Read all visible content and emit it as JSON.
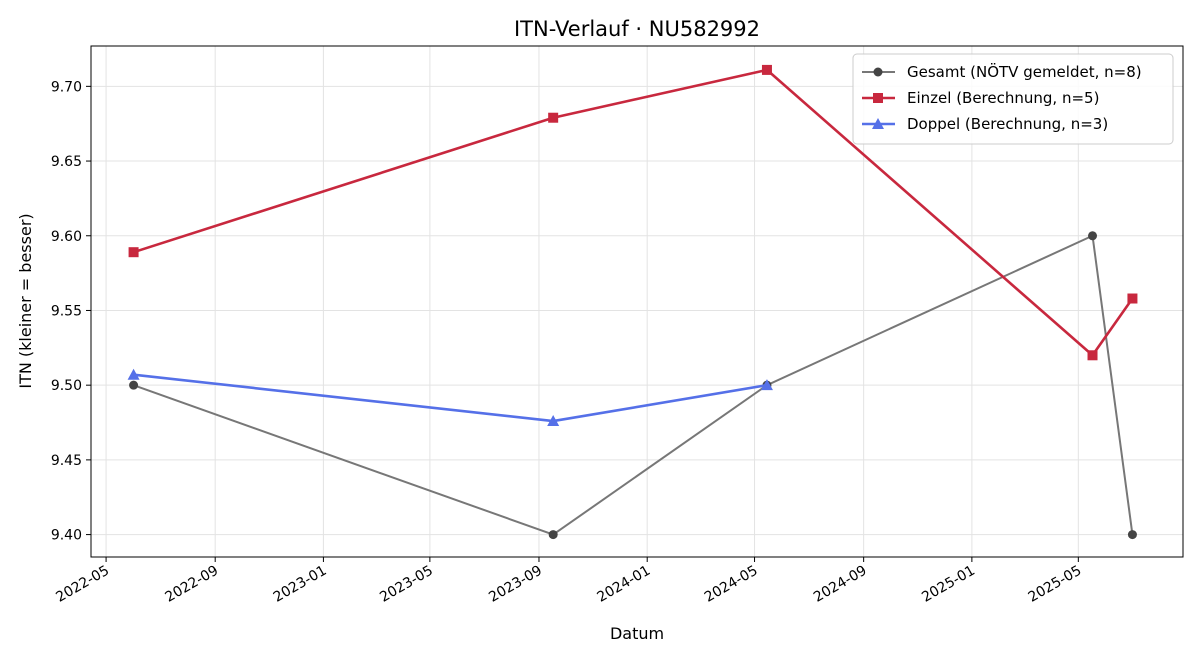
{
  "chart_data": {
    "type": "line",
    "title": "ITN-Verlauf · NU582992",
    "xlabel": "Datum",
    "ylabel": "ITN  (kleiner = besser)",
    "x_type": "date",
    "xlim": [
      "2022-04-14",
      "2025-08-27"
    ],
    "ylim": [
      9.385,
      9.727
    ],
    "x_ticks": [
      "2022-05",
      "2022-09",
      "2023-01",
      "2023-05",
      "2023-09",
      "2024-01",
      "2024-05",
      "2024-09",
      "2025-01",
      "2025-05"
    ],
    "y_ticks": [
      "9.40",
      "9.45",
      "9.50",
      "9.55",
      "9.60",
      "9.65",
      "9.70"
    ],
    "grid": true,
    "legend_position": "top-right",
    "series": [
      {
        "name": "Gesamt (NÖTV gemeldet, n=8)",
        "color": "#777777",
        "marker_color": "#444444",
        "marker": "circle",
        "x": [
          "2022-06-01",
          "2023-09-17",
          "2024-05-15",
          "2025-05-17",
          "2025-07-01"
        ],
        "y": [
          9.5,
          9.4,
          9.5,
          9.6,
          9.4
        ]
      },
      {
        "name": "Einzel (Berechnung, n=5)",
        "color": "#c8283e",
        "marker_color": "#c8283e",
        "marker": "square",
        "x": [
          "2022-06-01",
          "2023-09-17",
          "2024-05-15",
          "2025-05-17",
          "2025-07-01"
        ],
        "y": [
          9.589,
          9.679,
          9.711,
          9.52,
          9.558
        ]
      },
      {
        "name": "Doppel (Berechnung, n=3)",
        "color": "#5570e8",
        "marker_color": "#5570e8",
        "marker": "triangle",
        "x": [
          "2022-06-01",
          "2023-09-17",
          "2024-05-15"
        ],
        "y": [
          9.507,
          9.476,
          9.5
        ]
      }
    ]
  }
}
